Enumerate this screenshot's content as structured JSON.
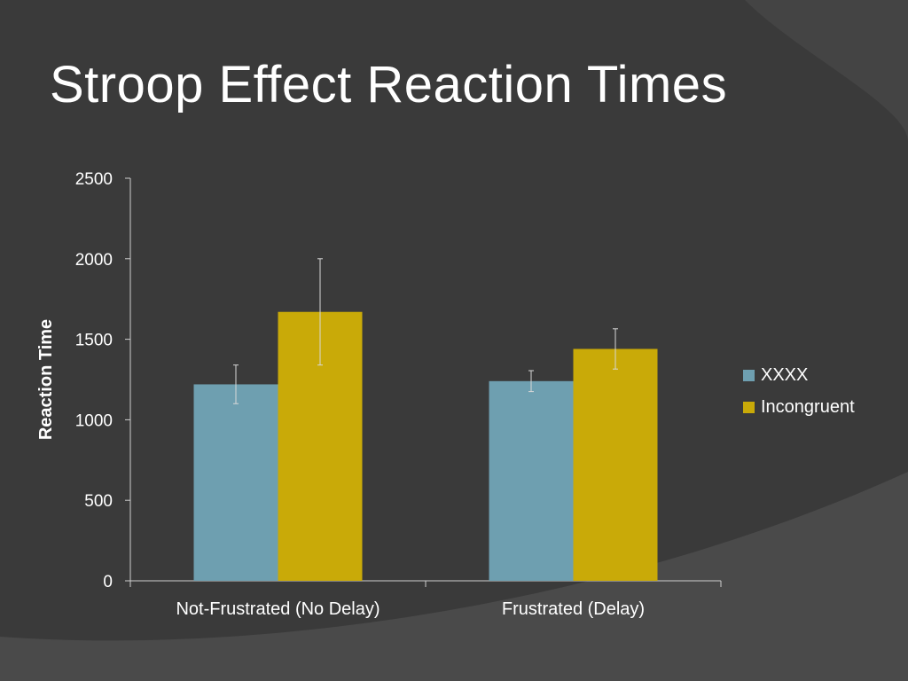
{
  "slide": {
    "title": "Stroop Effect Reaction Times"
  },
  "colors": {
    "background": "#3a3a3a",
    "background_band": "#4a4a4a",
    "axis": "#cfcfcf",
    "error_bar": "#d8d8d8"
  },
  "chart_data": {
    "type": "bar",
    "title": "",
    "xlabel": "",
    "ylabel": "Reaction Time",
    "ylim": [
      0,
      2500
    ],
    "yticks": [
      0,
      500,
      1000,
      1500,
      2000,
      2500
    ],
    "categories": [
      "Not-Frustrated (No Delay)",
      "Frustrated (Delay)"
    ],
    "series": [
      {
        "name": "XXXX",
        "color": "#6e9fb0",
        "values": [
          1220,
          1240
        ],
        "errors": [
          120,
          65
        ]
      },
      {
        "name": "Incongruent",
        "color": "#c9aa08",
        "values": [
          1670,
          1440
        ],
        "errors": [
          330,
          125
        ]
      }
    ],
    "grid": false,
    "legend": "right"
  }
}
